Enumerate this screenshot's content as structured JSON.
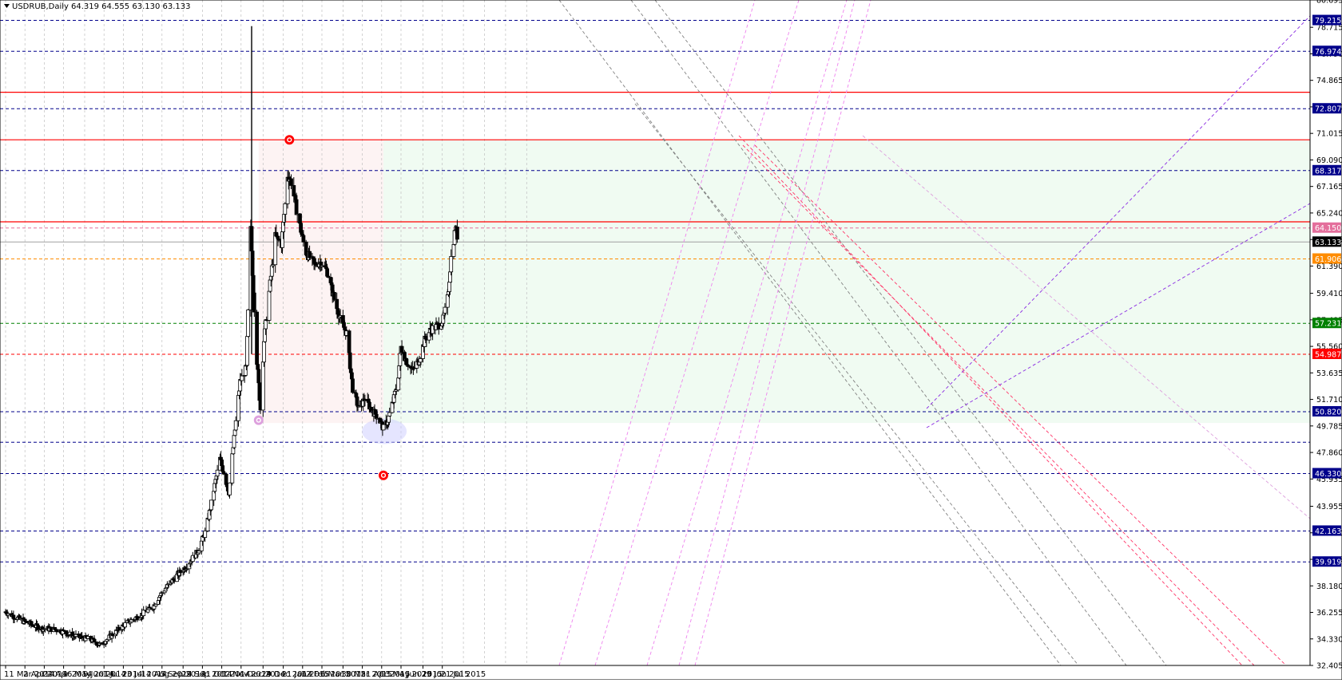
{
  "header": {
    "symbol_timeframe": "USDRUB,Daily",
    "ohlc": "64.319 64.555 63.130 63.133"
  },
  "chart_data": {
    "type": "candlestick",
    "x_ticks": [
      "11 Mar 2014",
      "2 Apr 2014",
      "24 Apr 2014",
      "16 May 2014",
      "9 Jun 2014",
      "1 Jul 2014",
      "23 Jul 2014",
      "14 Aug 2014",
      "5 Sep 2014",
      "29 Sep 2014",
      "21 Oct 2014",
      "12 Nov 2014",
      "4 Dec 2014",
      "29 Dec 2014",
      "21 Jan 2015",
      "12 Feb 2015",
      "6 Mar 2015",
      "30 Mar 2015",
      "21 Apr 2015",
      "13 May 2015",
      "4 Jun 2015",
      "29 Jun 2015",
      "21 Jul 2015"
    ],
    "y_ticks": [
      "80.695",
      "78.715",
      "76.790",
      "74.865",
      "72.940",
      "71.015",
      "69.090",
      "67.165",
      "65.240",
      "63.315",
      "61.390",
      "59.410",
      "57.485",
      "55.560",
      "53.635",
      "51.710",
      "49.785",
      "47.860",
      "45.935",
      "43.955",
      "42.030",
      "40.105",
      "38.180",
      "36.255",
      "34.330",
      "32.405"
    ],
    "ylim": [
      32.405,
      80.695
    ],
    "last_price": "63.133",
    "levels": [
      {
        "value": 79.215,
        "label": "79.215",
        "color": "#00008b",
        "style": "dashed"
      },
      {
        "value": 76.974,
        "label": "76.974",
        "color": "#00008b",
        "style": "dashed"
      },
      {
        "value": 74.0,
        "label": "",
        "color": "#ff0000",
        "style": "solid"
      },
      {
        "value": 72.807,
        "label": "72.807",
        "color": "#00008b",
        "style": "dashed"
      },
      {
        "value": 70.55,
        "label": "",
        "color": "#ff0000",
        "style": "solid"
      },
      {
        "value": 68.317,
        "label": "68.317",
        "color": "#00008b",
        "style": "dashed"
      },
      {
        "value": 64.6,
        "label": "",
        "color": "#ff0000",
        "style": "solid"
      },
      {
        "value": 64.15,
        "label": "64.150",
        "color": "#e46f9c",
        "style": "dashed"
      },
      {
        "value": 61.906,
        "label": "61.906",
        "color": "#ff8c00",
        "style": "dashed"
      },
      {
        "value": 57.231,
        "label": "57.231",
        "color": "#008000",
        "style": "dashed"
      },
      {
        "value": 54.987,
        "label": "54.987",
        "color": "#ff0000",
        "style": "dashed"
      },
      {
        "value": 50.82,
        "label": "50.820",
        "color": "#00008b",
        "style": "dashed"
      },
      {
        "value": 48.6,
        "label": "",
        "color": "#00008b",
        "style": "dashed"
      },
      {
        "value": 46.33,
        "label": "46.330",
        "color": "#00008b",
        "style": "dashed"
      },
      {
        "value": 42.163,
        "label": "42.163",
        "color": "#00008b",
        "style": "dashed"
      },
      {
        "value": 39.919,
        "label": "39.919",
        "color": "#00008b",
        "style": "dashed"
      }
    ],
    "anchors": [
      {
        "date": "2014-03-11",
        "price": 36.3
      },
      {
        "date": "2014-04-01",
        "price": 35.6
      },
      {
        "date": "2014-04-20",
        "price": 35.1
      },
      {
        "date": "2014-05-10",
        "price": 35.0
      },
      {
        "date": "2014-05-25",
        "price": 34.6
      },
      {
        "date": "2014-06-15",
        "price": 34.3
      },
      {
        "date": "2014-06-27",
        "price": 33.9
      },
      {
        "date": "2014-07-10",
        "price": 34.6
      },
      {
        "date": "2014-07-25",
        "price": 35.4
      },
      {
        "date": "2014-08-10",
        "price": 36.0
      },
      {
        "date": "2014-08-25",
        "price": 36.6
      },
      {
        "date": "2014-09-05",
        "price": 37.7
      },
      {
        "date": "2014-09-20",
        "price": 38.8
      },
      {
        "date": "2014-10-01",
        "price": 39.5
      },
      {
        "date": "2014-10-15",
        "price": 40.6
      },
      {
        "date": "2014-10-25",
        "price": 42.2
      },
      {
        "date": "2014-11-05",
        "price": 45.8
      },
      {
        "date": "2014-11-10",
        "price": 47.4
      },
      {
        "date": "2014-11-20",
        "price": 45.0
      },
      {
        "date": "2014-11-27",
        "price": 49.5
      },
      {
        "date": "2014-12-03",
        "price": 53.0
      },
      {
        "date": "2014-12-10",
        "price": 54.0
      },
      {
        "date": "2014-12-15",
        "price": 64.0
      },
      {
        "date": "2014-12-17",
        "price": 61.0
      },
      {
        "date": "2014-12-22",
        "price": 54.5
      },
      {
        "date": "2014-12-26",
        "price": 51.0
      },
      {
        "date": "2014-12-30",
        "price": 56.0
      },
      {
        "date": "2015-01-05",
        "price": 59.5
      },
      {
        "date": "2015-01-12",
        "price": 63.5
      },
      {
        "date": "2015-01-19",
        "price": 63.0
      },
      {
        "date": "2015-01-26",
        "price": 68.0
      },
      {
        "date": "2015-01-30",
        "price": 67.5
      },
      {
        "date": "2015-02-05",
        "price": 65.5
      },
      {
        "date": "2015-02-15",
        "price": 62.5
      },
      {
        "date": "2015-02-25",
        "price": 61.5
      },
      {
        "date": "2015-03-05",
        "price": 61.7
      },
      {
        "date": "2015-03-12",
        "price": 61.0
      },
      {
        "date": "2015-03-20",
        "price": 59.0
      },
      {
        "date": "2015-03-27",
        "price": 57.5
      },
      {
        "date": "2015-04-03",
        "price": 56.5
      },
      {
        "date": "2015-04-10",
        "price": 52.5
      },
      {
        "date": "2015-04-17",
        "price": 51.0
      },
      {
        "date": "2015-04-24",
        "price": 51.8
      },
      {
        "date": "2015-05-01",
        "price": 51.0
      },
      {
        "date": "2015-05-08",
        "price": 50.5
      },
      {
        "date": "2015-05-15",
        "price": 49.6
      },
      {
        "date": "2015-05-20",
        "price": 50.2
      },
      {
        "date": "2015-05-27",
        "price": 51.8
      },
      {
        "date": "2015-06-01",
        "price": 53.5
      },
      {
        "date": "2015-06-04",
        "price": 55.5
      },
      {
        "date": "2015-06-10",
        "price": 54.5
      },
      {
        "date": "2015-06-17",
        "price": 53.8
      },
      {
        "date": "2015-06-24",
        "price": 54.5
      },
      {
        "date": "2015-07-01",
        "price": 56.0
      },
      {
        "date": "2015-07-08",
        "price": 56.8
      },
      {
        "date": "2015-07-15",
        "price": 57.0
      },
      {
        "date": "2015-07-22",
        "price": 57.5
      },
      {
        "date": "2015-07-27",
        "price": 59.0
      },
      {
        "date": "2015-07-31",
        "price": 62.0
      },
      {
        "date": "2015-08-05",
        "price": 64.2
      },
      {
        "date": "2015-08-07",
        "price": 63.6
      }
    ],
    "spikes": [
      {
        "date": "2014-12-16",
        "high": 78.8,
        "low": 55.0
      }
    ],
    "markers": [
      {
        "date": "2015-01-28",
        "price": 70.55,
        "color": "#ff0000"
      },
      {
        "date": "2014-12-24",
        "price": 50.2,
        "color": "#dda0dd"
      },
      {
        "date": "2015-05-15",
        "price": 46.2,
        "color": "#ff0000"
      }
    ],
    "colors": {
      "bull": "#ffffff",
      "bear": "#000000",
      "pink_zone": "#fdf3f3",
      "green_zone": "#f0fbf2",
      "grid": "#c0c0c0"
    }
  }
}
